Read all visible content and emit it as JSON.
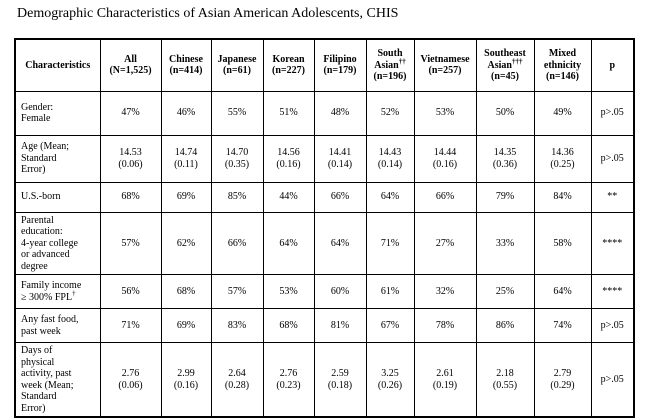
{
  "page": {
    "title": "Demographic Characteristics of Asian American Adolescents, CHIS"
  },
  "table": {
    "columns": [
      {
        "label": "Characteristics"
      },
      {
        "label": "All",
        "count": "(N=1,525)"
      },
      {
        "label": "Chinese",
        "count": "(n=414)"
      },
      {
        "label": "Japanese",
        "count": "(n=61)"
      },
      {
        "label": "Korean",
        "count": "(n=227)"
      },
      {
        "label": "Filipino",
        "count": "(n=179)"
      },
      {
        "label": "South\nAsian",
        "dagger": "††",
        "count": "(n=196)"
      },
      {
        "label": "Vietnamese",
        "count": "(n=257)"
      },
      {
        "label": "Southeast\nAsian",
        "dagger": "†††",
        "count": "(n=45)"
      },
      {
        "label": "Mixed\nethnicity",
        "count": "(n=146)"
      },
      {
        "label": "p"
      }
    ],
    "rows": [
      {
        "label": "Gender:\nFemale",
        "values": [
          "47%",
          "46%",
          "55%",
          "51%",
          "48%",
          "52%",
          "53%",
          "50%",
          "49%"
        ],
        "p": "p>.05"
      },
      {
        "label": "Age (Mean;\nStandard\nError)",
        "values": [
          "14.53\n(0.06)",
          "14.74\n(0.11)",
          "14.70\n(0.35)",
          "14.56\n(0.16)",
          "14.41\n(0.14)",
          "14.43\n(0.14)",
          "14.44\n(0.16)",
          "14.35\n(0.36)",
          "14.36\n(0.25)"
        ],
        "p": "p>.05"
      },
      {
        "label": "U.S.-born",
        "values": [
          "68%",
          "69%",
          "85%",
          "44%",
          "66%",
          "64%",
          "66%",
          "79%",
          "84%"
        ],
        "p": "**"
      },
      {
        "label": "Parental\neducation:\n4-year college\nor advanced\ndegree",
        "values": [
          "57%",
          "62%",
          "66%",
          "64%",
          "64%",
          "71%",
          "27%",
          "33%",
          "58%"
        ],
        "p": "****"
      },
      {
        "label": "Family income\n≥ 300% FPL",
        "dagger": "†",
        "values": [
          "56%",
          "68%",
          "57%",
          "53%",
          "60%",
          "61%",
          "32%",
          "25%",
          "64%"
        ],
        "p": "****"
      },
      {
        "label": "Any fast food,\npast week",
        "values": [
          "71%",
          "69%",
          "83%",
          "68%",
          "81%",
          "67%",
          "78%",
          "86%",
          "74%"
        ],
        "p": "p>.05"
      },
      {
        "label": "Days of\nphysical\nactivity, past\nweek (Mean;\nStandard\nError)",
        "values": [
          "2.76\n(0.06)",
          "2.99\n(0.16)",
          "2.64\n(0.28)",
          "2.76\n(0.23)",
          "2.59\n(0.18)",
          "3.25\n(0.26)",
          "2.61\n(0.19)",
          "2.18\n(0.55)",
          "2.79\n(0.29)"
        ],
        "p": "p>.05"
      }
    ]
  }
}
